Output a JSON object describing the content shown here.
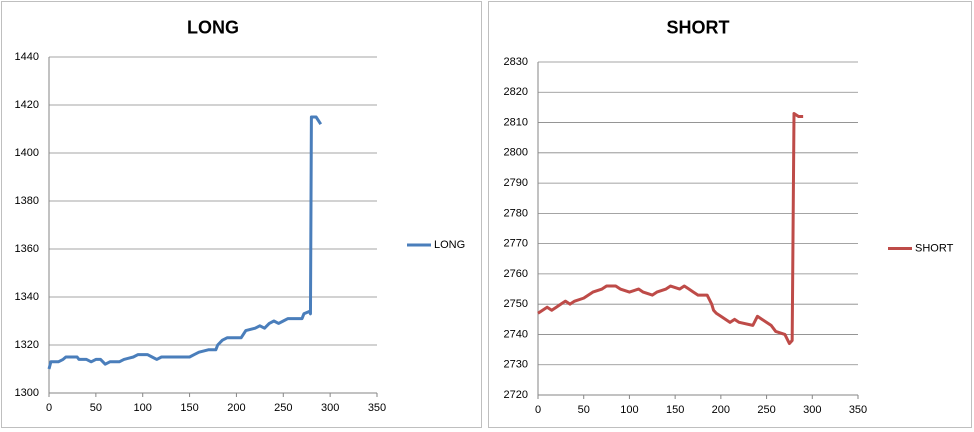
{
  "chart_data": [
    {
      "type": "line",
      "title": "LONG",
      "legend": "right",
      "grid": true,
      "x": [
        0,
        2,
        10,
        15,
        18,
        30,
        32,
        40,
        45,
        50,
        55,
        60,
        65,
        75,
        80,
        90,
        95,
        105,
        110,
        115,
        120,
        150,
        155,
        160,
        170,
        178,
        180,
        185,
        190,
        205,
        210,
        220,
        225,
        230,
        235,
        240,
        245,
        250,
        255,
        270,
        272,
        278,
        279,
        280,
        285,
        290
      ],
      "series": [
        {
          "name": "LONG",
          "color": "#4a7ebb",
          "values": [
            1310,
            1313,
            1313,
            1314,
            1315,
            1315,
            1314,
            1314,
            1313,
            1314,
            1314,
            1312,
            1313,
            1313,
            1314,
            1315,
            1316,
            1316,
            1315,
            1314,
            1315,
            1315,
            1316,
            1317,
            1318,
            1318,
            1320,
            1322,
            1323,
            1323,
            1326,
            1327,
            1328,
            1327,
            1329,
            1330,
            1329,
            1330,
            1331,
            1331,
            1333,
            1334,
            1333,
            1415,
            1415,
            1412
          ]
        }
      ],
      "xlim": [
        0,
        350
      ],
      "xticks": [
        0,
        50,
        100,
        150,
        200,
        250,
        300,
        350
      ],
      "ylim": [
        1300,
        1440
      ],
      "yticks": [
        1300,
        1320,
        1340,
        1360,
        1380,
        1400,
        1420,
        1440
      ]
    },
    {
      "type": "line",
      "title": "SHORT",
      "legend": "right",
      "grid": true,
      "x": [
        0,
        5,
        10,
        15,
        20,
        25,
        30,
        35,
        40,
        50,
        55,
        60,
        70,
        75,
        85,
        90,
        100,
        110,
        115,
        125,
        130,
        140,
        145,
        155,
        160,
        165,
        170,
        175,
        185,
        190,
        192,
        195,
        200,
        210,
        215,
        220,
        235,
        240,
        245,
        250,
        255,
        260,
        270,
        275,
        278,
        280,
        285,
        290
      ],
      "series": [
        {
          "name": "SHORT",
          "color": "#be4b48",
          "values": [
            2747,
            2748,
            2749,
            2748,
            2749,
            2750,
            2751,
            2750,
            2751,
            2752,
            2753,
            2754,
            2755,
            2756,
            2756,
            2755,
            2754,
            2755,
            2754,
            2753,
            2754,
            2755,
            2756,
            2755,
            2756,
            2755,
            2754,
            2753,
            2753,
            2750,
            2748,
            2747,
            2746,
            2744,
            2745,
            2744,
            2743,
            2746,
            2745,
            2744,
            2743,
            2741,
            2740,
            2737,
            2738,
            2813,
            2812,
            2812
          ]
        }
      ],
      "xlim": [
        0,
        350
      ],
      "xticks": [
        0,
        50,
        100,
        150,
        200,
        250,
        300,
        350
      ],
      "ylim": [
        2720,
        2830
      ],
      "yticks": [
        2720,
        2730,
        2740,
        2750,
        2760,
        2770,
        2780,
        2790,
        2800,
        2810,
        2820,
        2830
      ]
    }
  ]
}
